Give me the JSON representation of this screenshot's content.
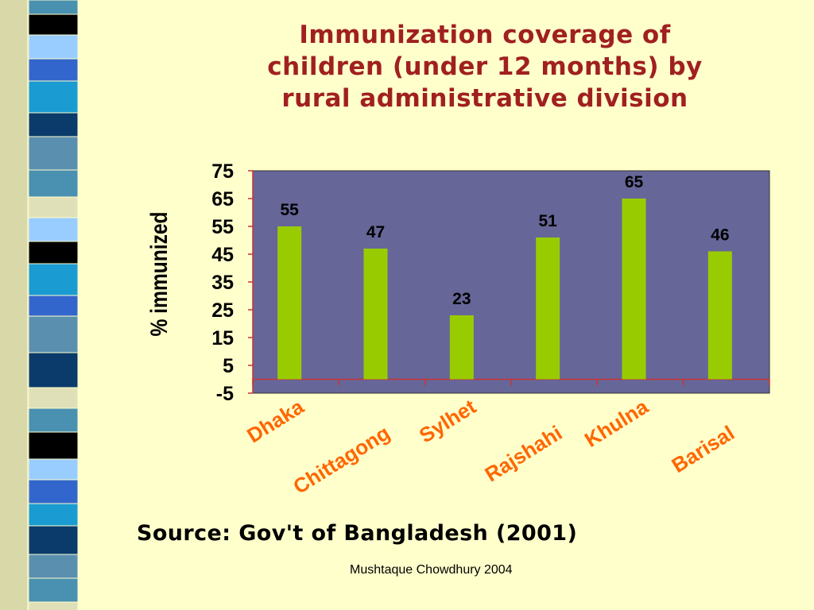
{
  "slide": {
    "title_lines": [
      "Immunization coverage of",
      "children (under 12 months) by",
      "rural administrative division"
    ],
    "source": "Source: Gov't of Bangladesh (2001)",
    "author": "Mushtaque Chowdhury 2004"
  },
  "colors": {
    "background": "#FFFFCC",
    "title": "#A02020",
    "plot_area": "#666699",
    "bar": "#99CC00",
    "category_label": "#FF6600",
    "axis_line": "#CC3333",
    "strip_blocks": [
      "#4A90B0",
      "#0B3B6B",
      "#3366CC",
      "#000000",
      "#E0E0B8",
      "#5B8FB0",
      "#1A9BD1",
      "#99CCFF"
    ]
  },
  "chart_data": {
    "type": "bar",
    "title": "",
    "xlabel": "",
    "ylabel": "% immunized",
    "categories": [
      "Dhaka",
      "Chittagong",
      "Sylhet",
      "Rajshahi",
      "Khulna",
      "Barisal"
    ],
    "values": [
      55,
      47,
      23,
      51,
      65,
      46
    ],
    "yticks": [
      75,
      65,
      55,
      45,
      35,
      25,
      15,
      5,
      -5
    ],
    "ylim": [
      -5,
      75
    ],
    "grid": false,
    "data_labels": true,
    "legend": "none"
  }
}
